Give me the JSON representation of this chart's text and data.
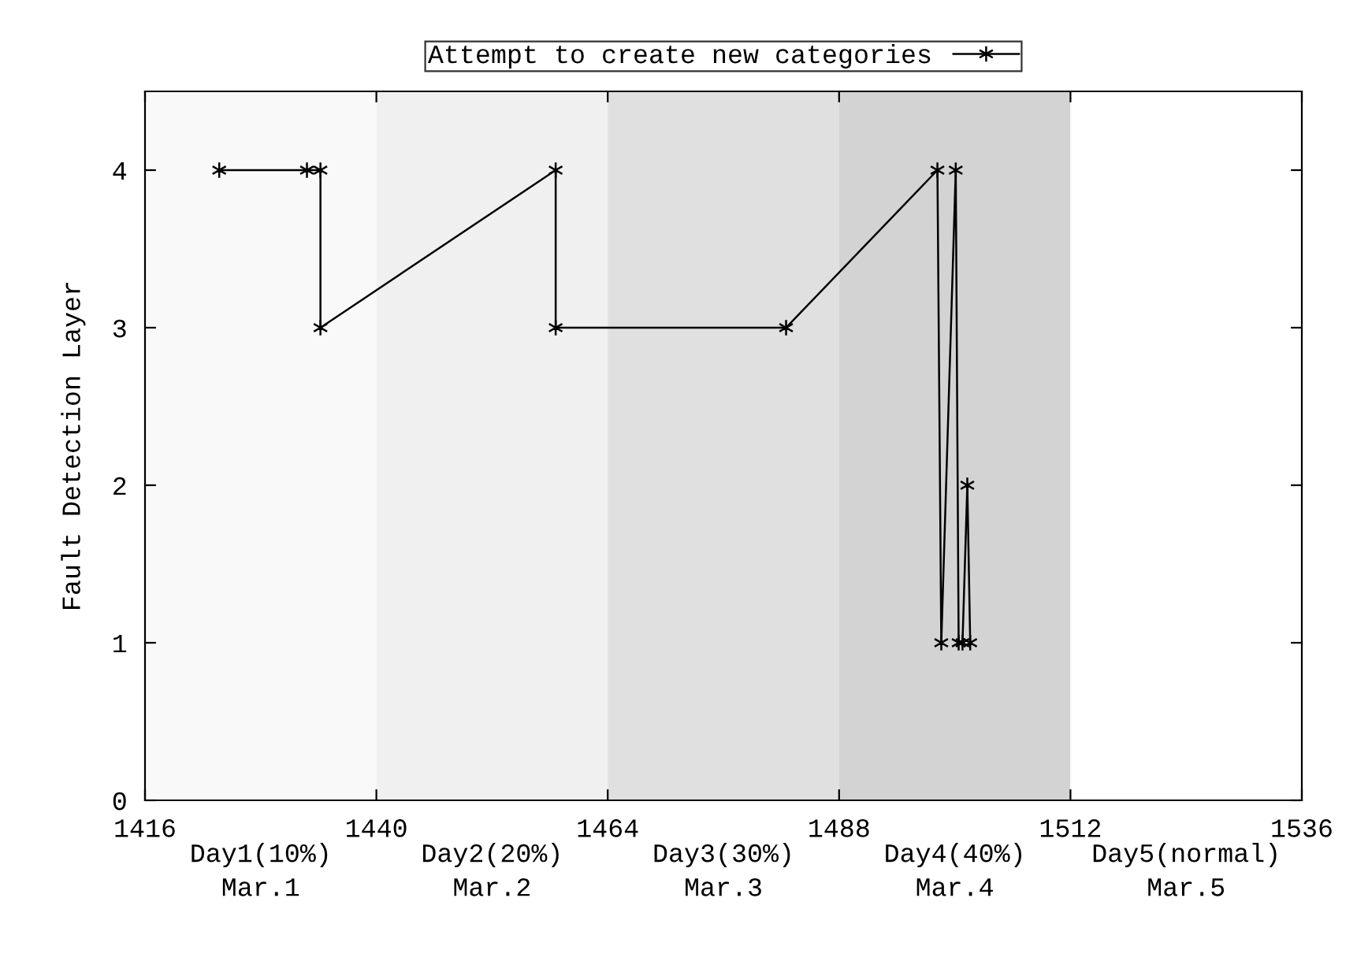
{
  "chart_data": {
    "type": "line",
    "ylabel": "Fault Detection Layer",
    "xlim": [
      1416,
      1536
    ],
    "ylim": [
      0,
      4.5
    ],
    "xticks": [
      1416,
      1440,
      1464,
      1488,
      1512,
      1536
    ],
    "yticks": [
      0,
      1,
      2,
      3,
      4
    ],
    "grid": false,
    "legend": "top",
    "marker": "cross",
    "line_style": "solid",
    "series": [
      {
        "name": "Attempt to create new categories",
        "color": "#000000",
        "x": [
          1423.7,
          1432.8,
          1434.2,
          1434.2,
          1458.6,
          1458.6,
          1482.5,
          1498.2,
          1498.6,
          1500.1,
          1500.4,
          1500.8,
          1501.3,
          1501.6
        ],
        "values": [
          4,
          4,
          4,
          3,
          4,
          3,
          3,
          4,
          1,
          4,
          1,
          1,
          2,
          1
        ]
      }
    ],
    "bands": [
      {
        "axis": "x",
        "from": 1416,
        "to": 1440,
        "label": "Day1(10%)\nMar.1",
        "color": "#f9f9f9"
      },
      {
        "axis": "x",
        "from": 1440,
        "to": 1464,
        "label": "Day2(20%)\nMar.2",
        "color": "#f0f0f0"
      },
      {
        "axis": "x",
        "from": 1464,
        "to": 1488,
        "label": "Day3(30%)\nMar.3",
        "color": "#e0e0e0"
      },
      {
        "axis": "x",
        "from": 1488,
        "to": 1512,
        "label": "Day4(40%)\nMar.4",
        "color": "#d3d3d3"
      },
      {
        "axis": "x",
        "from": 1512,
        "to": 1536,
        "label": "Day5(normal)\nMar.5",
        "color": "#ffffff"
      }
    ]
  }
}
